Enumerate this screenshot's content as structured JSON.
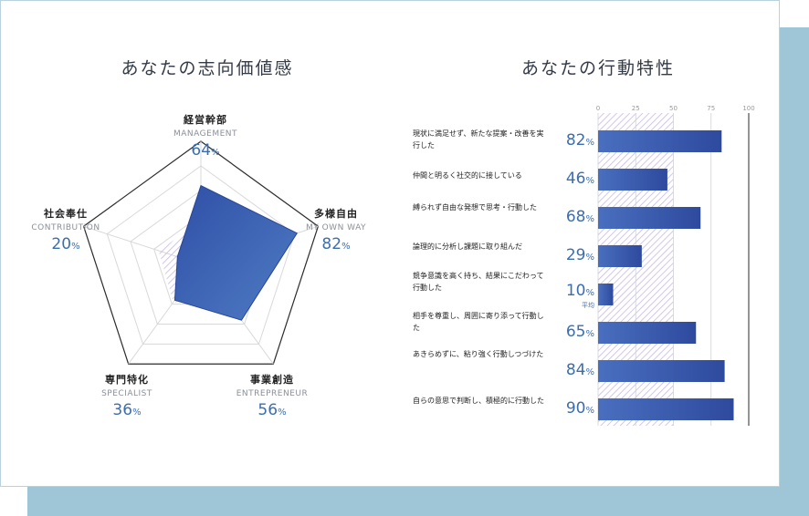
{
  "titles": {
    "left": "あなたの志向価値感",
    "right": "あなたの行動特性"
  },
  "colors": {
    "accent": "#3b6eb1",
    "bar": "#3d5ba8",
    "avg_hatch": "#c9b8e6",
    "shadow": "#9ec6d6"
  },
  "chart_data": [
    {
      "type": "radar",
      "title": "あなたの志向価値感",
      "range": [
        0,
        100
      ],
      "percent_suffix": "%",
      "axes": [
        {
          "jp": "経営幹部",
          "en": "MANAGEMENT",
          "value": 64,
          "value_text": "64"
        },
        {
          "jp": "多様自由",
          "en": "MY OWN WAY",
          "value": 82,
          "value_text": "82"
        },
        {
          "jp": "事業創造",
          "en": "ENTREPRENEUR",
          "value": 56,
          "value_text": "56"
        },
        {
          "jp": "専門特化",
          "en": "SPECIALIST",
          "value": 36,
          "value_text": "36"
        },
        {
          "jp": "社会奉仕",
          "en": "CONTRIBUTION",
          "value": 20,
          "value_text": "20"
        }
      ],
      "average_values": [
        35,
        32,
        40,
        38,
        36
      ]
    },
    {
      "type": "bar",
      "orientation": "horizontal",
      "title": "あなたの行動特性",
      "xlim": [
        0,
        100
      ],
      "xticks": [
        0,
        25,
        50,
        75,
        100
      ],
      "xtick_labels": [
        "0",
        "25",
        "50",
        "75",
        "100"
      ],
      "average_value": 50,
      "average_label": "平均",
      "percent_suffix": "%",
      "categories": [
        "現状に満足せず、新たな提案・改善を実行した",
        "仲間と明るく社交的に接している",
        "縛られず自由な発想で思考・行動した",
        "論理的に分析し課題に取り組んだ",
        "競争意識を高く持ち、結果にこだわって行動した",
        "相手を尊重し、周囲に寄り添って行動した",
        "あきらめずに、粘り強く行動しつづけた",
        "自らの意思で判断し、積極的に行動した"
      ],
      "values": [
        82,
        46,
        68,
        29,
        10,
        65,
        84,
        90
      ],
      "value_texts": [
        "82",
        "46",
        "68",
        "29",
        "10",
        "65",
        "84",
        "90"
      ]
    }
  ]
}
